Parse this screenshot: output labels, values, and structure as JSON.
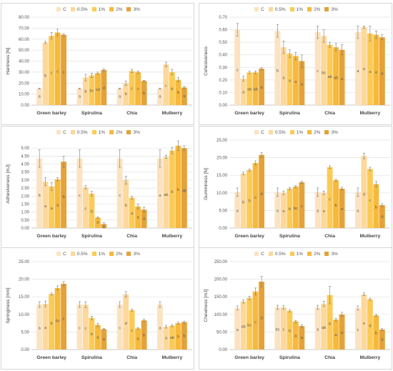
{
  "legend": [
    "C",
    "0.5%",
    "1%",
    "2%",
    "3%"
  ],
  "series_colors": [
    "#fbe3c1",
    "#fdd89a",
    "#fccb56",
    "#f6b93b",
    "#e4a23a"
  ],
  "categories": [
    "Green barley",
    "Spirulina",
    "Chia",
    "Mulberry"
  ],
  "chart_data": [
    {
      "type": "bar",
      "ylabel": "Hardness [N]",
      "ylim": [
        0,
        80
      ],
      "yticks": [
        "0.00",
        "10.00",
        "20.00",
        "30.00",
        "40.00",
        "50.00",
        "60.00",
        "70.00",
        "80.00"
      ],
      "categories": [
        "Green barley",
        "Spirulina",
        "Chia",
        "Mulberry"
      ],
      "series": [
        {
          "name": "C",
          "values": [
            15,
            15,
            15,
            15
          ],
          "errors": [
            0.5,
            0.5,
            0.5,
            0.5
          ],
          "letters": [
            "a",
            "a",
            "a",
            "a"
          ]
        },
        {
          "name": "0.5%",
          "values": [
            57,
            25,
            20,
            37
          ],
          "errors": [
            1.0,
            3.0,
            2.0,
            2.0
          ],
          "letters": [
            "b",
            "b",
            "b",
            "c"
          ]
        },
        {
          "name": "1%",
          "values": [
            63,
            27,
            31,
            30
          ],
          "errors": [
            3.0,
            2.0,
            1.5,
            2.5
          ],
          "letters": [
            "c",
            "bc",
            "c",
            "b"
          ]
        },
        {
          "name": "2%",
          "values": [
            66,
            29,
            30,
            23
          ],
          "errors": [
            3.0,
            1.0,
            1.0,
            2.0
          ],
          "letters": [
            "c",
            "cd",
            "c",
            "b"
          ]
        },
        {
          "name": "3%",
          "values": [
            64,
            32,
            22,
            16
          ],
          "errors": [
            1.0,
            1.0,
            0.5,
            1.0
          ],
          "letters": [
            "c",
            "d",
            "b",
            "a"
          ]
        }
      ]
    },
    {
      "type": "bar",
      "ylabel": "Cohesiveness",
      "ylim": [
        0,
        0.7
      ],
      "yticks": [
        "0.00",
        "0.10",
        "0.20",
        "0.30",
        "0.40",
        "0.50",
        "0.60",
        "0.70"
      ],
      "categories": [
        "Green barley",
        "Spirulina",
        "Chia",
        "Mulberry"
      ],
      "series": [
        {
          "name": "C",
          "values": [
            0.6,
            0.59,
            0.58,
            0.58
          ],
          "errors": [
            0.05,
            0.05,
            0.05,
            0.05
          ],
          "letters": [
            "c",
            "b",
            "c",
            "a"
          ]
        },
        {
          "name": "0.5%",
          "values": [
            0.21,
            0.46,
            0.55,
            0.62
          ],
          "errors": [
            0.02,
            0.05,
            0.05,
            0.01
          ],
          "letters": [
            "a",
            "a",
            "bc",
            "a"
          ]
        },
        {
          "name": "1%",
          "values": [
            0.26,
            0.41,
            0.48,
            0.57
          ],
          "errors": [
            0.01,
            0.03,
            0.02,
            0.06
          ],
          "letters": [
            "ab",
            "a",
            "ab",
            "a"
          ]
        },
        {
          "name": "2%",
          "values": [
            0.26,
            0.39,
            0.46,
            0.56
          ],
          "errors": [
            0.01,
            0.03,
            0.03,
            0.03
          ],
          "letters": [
            "ab",
            "a",
            "ab",
            "a"
          ]
        },
        {
          "name": "3%",
          "values": [
            0.29,
            0.35,
            0.44,
            0.54
          ],
          "errors": [
            0.01,
            0.05,
            0.04,
            0.02
          ],
          "letters": [
            "b",
            "a",
            "a",
            "a"
          ]
        }
      ]
    },
    {
      "type": "bar",
      "ylabel": "Adhesiveness [mJ]",
      "ylim": [
        0,
        5.5
      ],
      "yticks": [
        "0.00",
        "0.50",
        "1.00",
        "1.50",
        "2.00",
        "2.50",
        "3.00",
        "3.50",
        "4.00",
        "4.50",
        "5.00"
      ],
      "categories": [
        "Green barley",
        "Spirulina",
        "Chia",
        "Mulberry"
      ],
      "series": [
        {
          "name": "C",
          "values": [
            4.35,
            4.35,
            4.35,
            4.35
          ],
          "errors": [
            0.55,
            0.55,
            0.55,
            0.55
          ],
          "letters": [
            "b",
            "c",
            "c",
            "a"
          ]
        },
        {
          "name": "0.5%",
          "values": [
            2.9,
            2.55,
            3.0,
            4.45
          ],
          "errors": [
            0.25,
            0.1,
            0.25,
            0.1
          ],
          "letters": [
            "a",
            "c",
            "b",
            "ab"
          ]
        },
        {
          "name": "1%",
          "values": [
            2.6,
            2.15,
            1.9,
            4.85
          ],
          "errors": [
            0.25,
            0.15,
            0.1,
            0.2
          ],
          "letters": [
            "a",
            "b",
            "a",
            "b"
          ]
        },
        {
          "name": "2%",
          "values": [
            3.05,
            0.65,
            1.35,
            5.15
          ],
          "errors": [
            0.1,
            0.05,
            0.15,
            0.3
          ],
          "letters": [
            "a",
            "a",
            "a",
            "b"
          ]
        },
        {
          "name": "3%",
          "values": [
            4.15,
            0.25,
            1.15,
            5.0
          ],
          "errors": [
            0.35,
            0.1,
            0.15,
            0.15
          ],
          "letters": [
            "b",
            "a",
            "a",
            "ab"
          ]
        }
      ]
    },
    {
      "type": "bar",
      "ylabel": "Gumminess [N]",
      "ylim": [
        0,
        25
      ],
      "yticks": [
        "0.00",
        "5.00",
        "10.00",
        "15.00",
        "20.00",
        "25.00"
      ],
      "categories": [
        "Green barley",
        "Spirulina",
        "Chia",
        "Mulberry"
      ],
      "series": [
        {
          "name": "C",
          "values": [
            10.2,
            10.2,
            10.2,
            10.2
          ],
          "errors": [
            1.2,
            1.2,
            1.2,
            1.2
          ],
          "letters": [
            "a",
            "a",
            "a",
            "a"
          ]
        },
        {
          "name": "0.5%",
          "values": [
            15.5,
            10.0,
            10.0,
            20.5
          ],
          "errors": [
            0.4,
            0.5,
            0.5,
            0.8
          ],
          "letters": [
            "b",
            "a",
            "a",
            "d"
          ]
        },
        {
          "name": "1%",
          "values": [
            16.5,
            11.2,
            17.3,
            16.8
          ],
          "errors": [
            0.3,
            0.3,
            0.4,
            0.5
          ],
          "letters": [
            "b",
            "b",
            "c",
            "c"
          ]
        },
        {
          "name": "2%",
          "values": [
            18.5,
            11.8,
            13.6,
            12.5
          ],
          "errors": [
            0.6,
            0.3,
            0.3,
            0.8
          ],
          "letters": [
            "c",
            "bc",
            "b",
            "b"
          ]
        },
        {
          "name": "3%",
          "values": [
            20.8,
            13.0,
            11.2,
            6.5
          ],
          "errors": [
            0.7,
            0.3,
            0.4,
            0.4
          ],
          "letters": [
            "d",
            "c",
            "a",
            "a"
          ]
        }
      ]
    },
    {
      "type": "bar",
      "ylabel": "Springiness [mm]",
      "ylim": [
        0,
        25
      ],
      "yticks": [
        "0.00",
        "5.00",
        "10.00",
        "15.00",
        "20.00",
        "25.00"
      ],
      "categories": [
        "Green barley",
        "Spirulina",
        "Chia",
        "Mulberry"
      ],
      "series": [
        {
          "name": "C",
          "values": [
            12.8,
            12.8,
            12.8,
            12.8
          ],
          "errors": [
            0.8,
            0.8,
            0.8,
            0.8
          ],
          "letters": [
            "a",
            "c",
            "c",
            "a"
          ]
        },
        {
          "name": "0.5%",
          "values": [
            13.0,
            12.7,
            15.7,
            6.5
          ],
          "errors": [
            0.8,
            0.8,
            0.8,
            0.4
          ],
          "letters": [
            "a",
            "c",
            "d",
            "a"
          ]
        },
        {
          "name": "1%",
          "values": [
            15.8,
            9.0,
            11.2,
            6.8
          ],
          "errors": [
            0.3,
            0.5,
            0.3,
            0.3
          ],
          "letters": [
            "b",
            "b",
            "c",
            "ab"
          ]
        },
        {
          "name": "2%",
          "values": [
            17.5,
            7.0,
            6.0,
            7.5
          ],
          "errors": [
            0.6,
            0.5,
            0.2,
            0.3
          ],
          "letters": [
            "bc",
            "a",
            "a",
            "b"
          ]
        },
        {
          "name": "3%",
          "values": [
            18.7,
            5.8,
            8.3,
            7.8
          ],
          "errors": [
            0.6,
            0.2,
            0.3,
            0.3
          ],
          "letters": [
            "c",
            "a",
            "b",
            "b"
          ]
        }
      ]
    },
    {
      "type": "bar",
      "ylabel": "Chewiness [mJ]",
      "ylim": [
        0,
        250
      ],
      "yticks": [
        "0.00",
        "50.00",
        "100.00",
        "150.00",
        "200.00",
        "250.00"
      ],
      "categories": [
        "Green barley",
        "Spirulina",
        "Chia",
        "Mulberry"
      ],
      "series": [
        {
          "name": "C",
          "values": [
            118,
            120,
            120,
            118
          ],
          "errors": [
            6,
            6,
            6,
            6
          ],
          "letters": [
            "a",
            "bc",
            "a",
            "c"
          ]
        },
        {
          "name": "0.5%",
          "values": [
            137,
            120,
            130,
            157
          ],
          "errors": [
            5,
            5,
            7,
            4
          ],
          "letters": [
            "ab",
            "c",
            "ab",
            "e"
          ]
        },
        {
          "name": "1%",
          "values": [
            147,
            110,
            155,
            143
          ],
          "errors": [
            5,
            3,
            25,
            3
          ],
          "letters": [
            "bc",
            "b",
            "b",
            "d"
          ]
        },
        {
          "name": "2%",
          "values": [
            165,
            80,
            85,
            97
          ],
          "errors": [
            10,
            3,
            4,
            3
          ],
          "letters": [
            "c",
            "a",
            "a",
            "b"
          ]
        },
        {
          "name": "3%",
          "values": [
            193,
            67,
            100,
            57
          ],
          "errors": [
            15,
            4,
            6,
            3
          ],
          "letters": [
            "d",
            "a",
            "a",
            "a"
          ]
        }
      ]
    }
  ]
}
